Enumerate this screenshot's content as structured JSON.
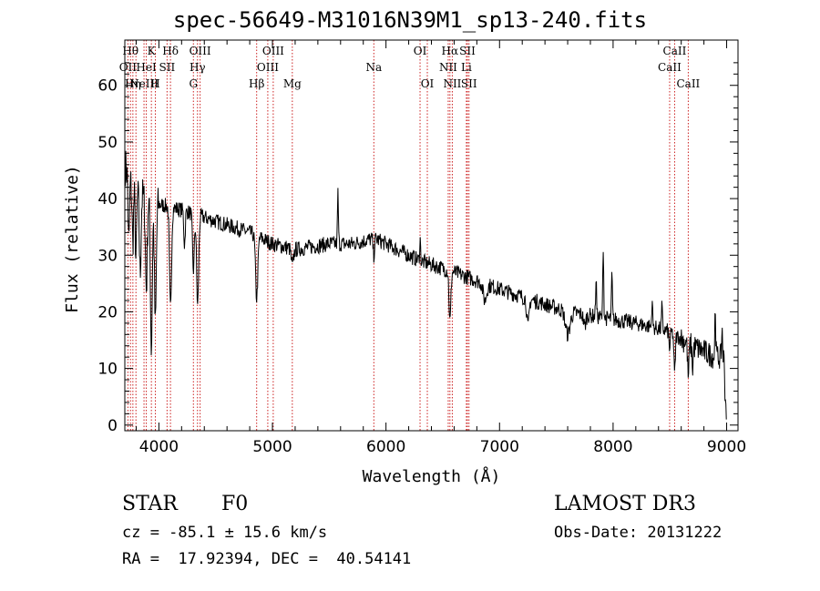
{
  "header": {
    "title": "spec-56649-M31016N39M1_sp13-240.fits"
  },
  "footer": {
    "class_label": "STAR",
    "subclass": "F0",
    "survey": "LAMOST DR3",
    "cz_text": "cz = -85.1 ± 15.6 km/s",
    "obs_date": "Obs-Date: 20131222",
    "radec": "RA =  17.92394, DEC =  40.54141"
  },
  "chart_data": {
    "type": "line",
    "title": "spec-56649-M31016N39M1_sp13-240.fits",
    "xlabel": "Wavelength (Å)",
    "ylabel": "Flux (relative)",
    "xlim": [
      3700,
      9100
    ],
    "ylim": [
      -1,
      68
    ],
    "xticks": [
      4000,
      5000,
      6000,
      7000,
      8000,
      9000
    ],
    "yticks": [
      0,
      10,
      20,
      30,
      40,
      50,
      60
    ],
    "continuum": [
      [
        3700,
        46
      ],
      [
        3750,
        43
      ],
      [
        3800,
        41
      ],
      [
        3900,
        40
      ],
      [
        4000,
        39
      ],
      [
        4200,
        38
      ],
      [
        4500,
        36
      ],
      [
        4800,
        34
      ],
      [
        5000,
        32
      ],
      [
        5200,
        31
      ],
      [
        5500,
        32
      ],
      [
        5700,
        32
      ],
      [
        5900,
        33
      ],
      [
        6100,
        31
      ],
      [
        6300,
        29
      ],
      [
        6600,
        27
      ],
      [
        6800,
        25.5
      ],
      [
        7000,
        24
      ],
      [
        7300,
        22
      ],
      [
        7600,
        20
      ],
      [
        7900,
        19
      ],
      [
        8200,
        18
      ],
      [
        8500,
        16.5
      ],
      [
        8700,
        14
      ],
      [
        8900,
        12
      ],
      [
        9000,
        12
      ]
    ],
    "features": [
      {
        "x": 3735,
        "depth": -12,
        "w": 6
      },
      {
        "x": 3770,
        "depth": -10,
        "w": 6
      },
      {
        "x": 3798,
        "depth": -12,
        "w": 6
      },
      {
        "x": 3835,
        "depth": -14,
        "w": 7
      },
      {
        "x": 3889,
        "depth": -16,
        "w": 8
      },
      {
        "x": 3934,
        "depth": -26,
        "w": 8
      },
      {
        "x": 3969,
        "depth": -22,
        "w": 8
      },
      {
        "x": 4102,
        "depth": -18,
        "w": 9
      },
      {
        "x": 4226,
        "depth": -6,
        "w": 6
      },
      {
        "x": 4304,
        "depth": -10,
        "w": 8
      },
      {
        "x": 4341,
        "depth": -16,
        "w": 9
      },
      {
        "x": 4861,
        "depth": -11,
        "w": 10
      },
      {
        "x": 5175,
        "depth": -3,
        "w": 10
      },
      {
        "x": 5577,
        "depth": 9,
        "w": 4
      },
      {
        "x": 5893,
        "depth": -3,
        "w": 6
      },
      {
        "x": 6300,
        "depth": 4,
        "w": 4
      },
      {
        "x": 6563,
        "depth": -9,
        "w": 8
      },
      {
        "x": 6870,
        "depth": -3,
        "w": 15
      },
      {
        "x": 7250,
        "depth": -5,
        "w": 10
      },
      {
        "x": 7600,
        "depth": -4,
        "w": 20
      },
      {
        "x": 7750,
        "depth": -2,
        "w": 10
      },
      {
        "x": 7850,
        "depth": 7,
        "w": 4
      },
      {
        "x": 7913,
        "depth": 13,
        "w": 4
      },
      {
        "x": 7990,
        "depth": 8,
        "w": 4
      },
      {
        "x": 8344,
        "depth": 5,
        "w": 4
      },
      {
        "x": 8430,
        "depth": 4,
        "w": 4
      },
      {
        "x": 8498,
        "depth": -3,
        "w": 6
      },
      {
        "x": 8542,
        "depth": -7,
        "w": 6
      },
      {
        "x": 8662,
        "depth": -6,
        "w": 6
      },
      {
        "x": 8700,
        "depth": -4,
        "w": 5
      },
      {
        "x": 8900,
        "depth": 9,
        "w": 4
      },
      {
        "x": 8960,
        "depth": 5,
        "w": 4
      },
      {
        "x": 8990,
        "depth": -8,
        "w": 6
      }
    ],
    "noise": 1.4,
    "lines": [
      {
        "w": 3727,
        "label": "OII",
        "row": 1
      },
      {
        "w": 3750,
        "label": "Hθ",
        "row": 0
      },
      {
        "w": 3771,
        "label": "Hη",
        "row": 2
      },
      {
        "w": 3798,
        "label": "",
        "row": 0
      },
      {
        "w": 3869,
        "label": "NeIII",
        "row": 2
      },
      {
        "w": 3889,
        "label": "HeI",
        "row": 1
      },
      {
        "w": 3934,
        "label": "K",
        "row": 0
      },
      {
        "w": 3969,
        "label": "H",
        "row": 2
      },
      {
        "w": 4072,
        "label": "SII",
        "row": 1
      },
      {
        "w": 4102,
        "label": "Hδ",
        "row": 0
      },
      {
        "w": 4304,
        "label": "G",
        "row": 2
      },
      {
        "w": 4340,
        "label": "Hγ",
        "row": 1
      },
      {
        "w": 4363,
        "label": "OIII",
        "row": 0
      },
      {
        "w": 4861,
        "label": "Hβ",
        "row": 2
      },
      {
        "w": 4959,
        "label": "OIII",
        "row": 1
      },
      {
        "w": 5007,
        "label": "OIII",
        "row": 0
      },
      {
        "w": 5175,
        "label": "Mg",
        "row": 2
      },
      {
        "w": 5893,
        "label": "Na",
        "row": 1
      },
      {
        "w": 6300,
        "label": "OI",
        "row": 0
      },
      {
        "w": 6364,
        "label": "OI",
        "row": 2
      },
      {
        "w": 6548,
        "label": "NII",
        "row": 1
      },
      {
        "w": 6563,
        "label": "Hα",
        "row": 0
      },
      {
        "w": 6584,
        "label": "NII",
        "row": 2
      },
      {
        "w": 6708,
        "label": "Li",
        "row": 1
      },
      {
        "w": 6717,
        "label": "SII",
        "row": 0
      },
      {
        "w": 6731,
        "label": "SII",
        "row": 2
      },
      {
        "w": 8498,
        "label": "CaII",
        "row": 1
      },
      {
        "w": 8542,
        "label": "CaII",
        "row": 0
      },
      {
        "w": 8662,
        "label": "CaII",
        "row": 2
      }
    ]
  }
}
